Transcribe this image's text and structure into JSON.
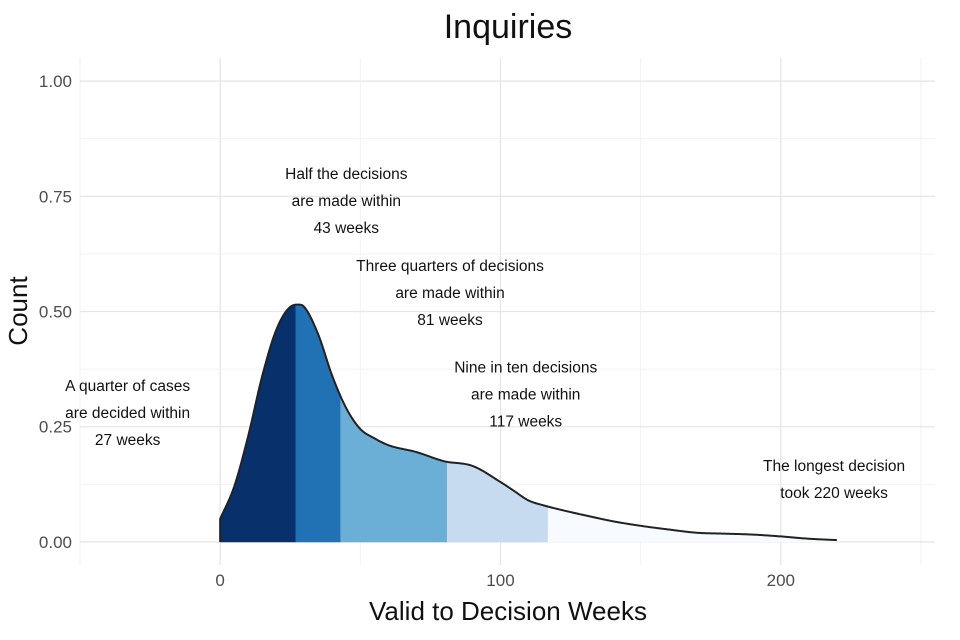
{
  "chart_data": {
    "type": "area",
    "title": "Inquiries",
    "xlabel": "Valid to Decision Weeks",
    "ylabel": "Count",
    "xlim": [
      -50,
      255
    ],
    "ylim": [
      -0.05,
      1.05
    ],
    "x_ticks": [
      0,
      100,
      200
    ],
    "x_tick_labels": [
      "0",
      "100",
      "200"
    ],
    "y_ticks": [
      0,
      0.25,
      0.5,
      0.75,
      1
    ],
    "y_tick_labels": [
      "0.00",
      "0.25",
      "0.50",
      "0.75",
      "1.00"
    ],
    "grid": true,
    "legend": "none",
    "density": {
      "x": [
        0,
        5,
        10,
        15,
        20,
        25,
        28,
        30,
        35,
        40,
        45,
        50,
        55,
        60,
        70,
        80,
        90,
        100,
        105,
        110,
        115,
        120,
        130,
        140,
        150,
        160,
        170,
        180,
        190,
        200,
        210,
        220
      ],
      "y": [
        0.05,
        0.12,
        0.23,
        0.36,
        0.46,
        0.51,
        0.515,
        0.51,
        0.45,
        0.36,
        0.29,
        0.245,
        0.225,
        0.21,
        0.195,
        0.175,
        0.165,
        0.13,
        0.11,
        0.09,
        0.08,
        0.072,
        0.058,
        0.045,
        0.035,
        0.027,
        0.02,
        0.018,
        0.016,
        0.012,
        0.007,
        0.004
      ]
    },
    "bands": [
      {
        "from": 0,
        "to": 27,
        "color": "#08306b"
      },
      {
        "from": 27,
        "to": 43,
        "color": "#2171b5"
      },
      {
        "from": 43,
        "to": 81,
        "color": "#6baed6"
      },
      {
        "from": 81,
        "to": 117,
        "color": "#c6dbef"
      },
      {
        "from": 117,
        "to": 220,
        "color": "#f7fbff"
      }
    ],
    "annotations": [
      {
        "name": "annotation-quarter",
        "x": -33,
        "y": 0.28,
        "lines": [
          "A quarter of cases",
          "are decided within",
          "27 weeks"
        ]
      },
      {
        "name": "annotation-half",
        "x": 45,
        "y": 0.74,
        "lines": [
          "Half the decisions",
          "are made within",
          "43 weeks"
        ]
      },
      {
        "name": "annotation-three-quarters",
        "x": 82,
        "y": 0.54,
        "lines": [
          "Three quarters of decisions",
          "are made within",
          "81 weeks"
        ]
      },
      {
        "name": "annotation-nine-in-ten",
        "x": 109,
        "y": 0.32,
        "lines": [
          "Nine in ten decisions",
          "are made within",
          "117 weeks"
        ]
      },
      {
        "name": "annotation-longest",
        "x": 219,
        "y": 0.135,
        "lines": [
          "The longest decision",
          "took 220 weeks"
        ]
      }
    ],
    "outline_color": "#222222"
  }
}
